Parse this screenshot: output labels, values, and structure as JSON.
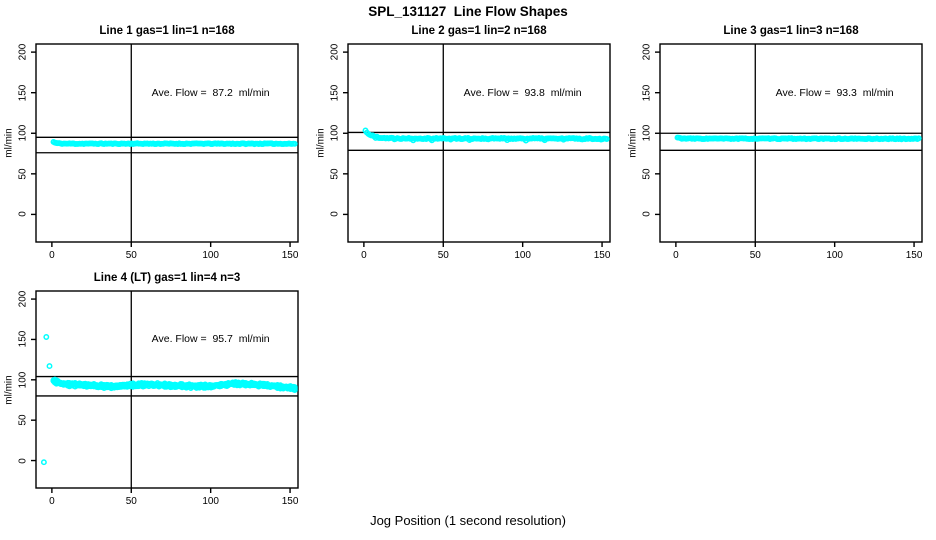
{
  "figure": {
    "title": "SPL_131127  Line Flow Shapes",
    "x_axis_label": "Jog Position (1 second resolution)",
    "background_color": "#ffffff"
  },
  "chart_data": {
    "type": "scatter",
    "title": "SPL_131127  Line Flow Shapes",
    "xlabel": "Jog Position (1 second resolution)",
    "ylabel": "ml/min",
    "x_ticks": [
      0,
      50,
      100,
      150
    ],
    "y_ticks": [
      0,
      50,
      100,
      150,
      200
    ],
    "xlim": [
      -10,
      155
    ],
    "ylim": [
      -34,
      210
    ],
    "grid": false,
    "vline_x": 50,
    "point_color": "#00ffff",
    "line_color": "#000000",
    "point_style": "open-circle",
    "layout": "2x3 grid, panels 1-3 top row, panel 4 bottom left",
    "panels": [
      {
        "title": "Line 1 gas=1 lin=1 n=168",
        "ave_flow_label": "Ave. Flow =  87.2  ml/min",
        "ave_flow": 87.2,
        "n": 168,
        "ref_line_upper": 95,
        "ref_line_lower": 76,
        "x_start": 1,
        "x_end": 153,
        "noise": 0.55,
        "passes": 1,
        "pass_offsets": [
          0
        ],
        "seed": 11,
        "dips": null,
        "outliers": [],
        "series_anchors": [
          [
            1,
            89.3
          ],
          [
            2,
            88.2
          ],
          [
            4,
            87.5
          ],
          [
            8,
            87.2
          ],
          [
            153,
            87.1
          ]
        ]
      },
      {
        "title": "Line 2 gas=1 lin=2 n=168",
        "ave_flow_label": "Ave. Flow =  93.8  ml/min",
        "ave_flow": 93.8,
        "n": 168,
        "ref_line_upper": 101,
        "ref_line_lower": 79,
        "x_start": 1,
        "x_end": 153,
        "noise": 0.8,
        "passes": 1,
        "pass_offsets": [
          0
        ],
        "seed": 22,
        "dips": {
          "every": 13,
          "phase": 7,
          "depth": 1.7
        },
        "outliers": [],
        "series_anchors": [
          [
            1,
            103.2
          ],
          [
            2,
            101
          ],
          [
            3,
            99.3
          ],
          [
            5,
            97.2
          ],
          [
            7,
            95.9
          ],
          [
            10,
            94.8
          ],
          [
            14,
            94.2
          ],
          [
            20,
            93.8
          ],
          [
            60,
            93.6
          ],
          [
            100,
            93.5
          ],
          [
            153,
            93.4
          ]
        ]
      },
      {
        "title": "Line 3 gas=1 lin=3 n=168",
        "ave_flow_label": "Ave. Flow =  93.3  ml/min",
        "ave_flow": 93.3,
        "n": 168,
        "ref_line_upper": 100,
        "ref_line_lower": 79,
        "x_start": 1,
        "x_end": 153,
        "noise": 0.6,
        "passes": 1,
        "pass_offsets": [
          0
        ],
        "seed": 33,
        "dips": null,
        "outliers": [],
        "series_anchors": [
          [
            1,
            94.6
          ],
          [
            3,
            93.8
          ],
          [
            6,
            93.4
          ],
          [
            153,
            93.2
          ]
        ]
      },
      {
        "title": "Line 4 (LT) gas=1 lin=4 n=3",
        "ave_flow_label": "Ave. Flow =  95.7  ml/min",
        "ave_flow": 95.7,
        "n": 3,
        "ref_line_upper": 104,
        "ref_line_lower": 80,
        "x_start": 1,
        "x_end": 153,
        "noise": 1.4,
        "passes": 3,
        "pass_offsets": [
          -0.9,
          0,
          0.9
        ],
        "seed": 44,
        "dips": null,
        "outliers": [
          [
            -5,
            -2
          ],
          [
            -3.5,
            153
          ],
          [
            -1.5,
            117
          ]
        ],
        "series_anchors": [
          [
            1,
            99.5
          ],
          [
            3,
            97
          ],
          [
            6,
            95.5
          ],
          [
            10,
            94.3
          ],
          [
            16,
            93.8
          ],
          [
            24,
            93.2
          ],
          [
            32,
            92.2
          ],
          [
            40,
            91.6
          ],
          [
            46,
            92.8
          ],
          [
            54,
            93.8
          ],
          [
            64,
            93.9
          ],
          [
            72,
            93.2
          ],
          [
            80,
            92.6
          ],
          [
            88,
            92.1
          ],
          [
            96,
            92.0
          ],
          [
            102,
            92.5
          ],
          [
            108,
            93.8
          ],
          [
            114,
            95.0
          ],
          [
            120,
            95.2
          ],
          [
            126,
            94.4
          ],
          [
            132,
            93.6
          ],
          [
            138,
            92.2
          ],
          [
            144,
            91.2
          ],
          [
            148,
            90.8
          ],
          [
            151,
            90.0
          ],
          [
            153,
            89.3
          ]
        ]
      }
    ]
  }
}
